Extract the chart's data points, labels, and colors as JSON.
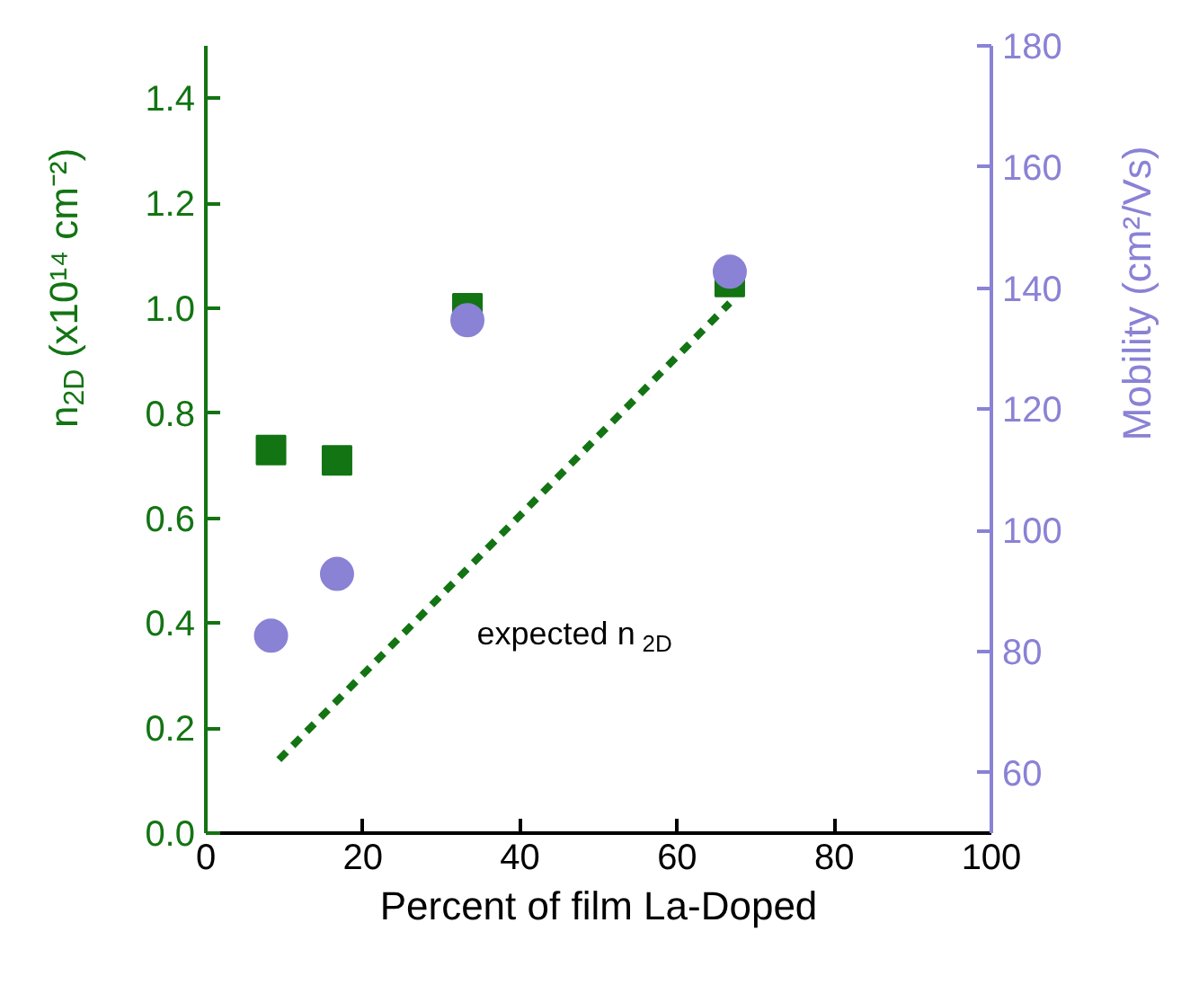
{
  "chart_data": {
    "type": "scatter",
    "xlabel": "Percent of film La-Doped",
    "ylabel": "n$_{2D}$ (x10¹⁴ cm⁻²)",
    "y2label": "Mobility (cm²/Vs)",
    "x": [
      8.3,
      16.7,
      33.3,
      66.7
    ],
    "series": [
      {
        "marker": "square",
        "color": "#137413",
        "values": [
          0.73,
          0.71,
          1.0,
          1.05
        ]
      },
      {
        "marker": "circle",
        "color": "#8a82d5",
        "axis": "y2",
        "values": [
          82.6,
          92.8,
          134.7,
          142.7
        ]
      },
      {
        "type": "line",
        "line_style": "dashed",
        "marker": "none",
        "color": "#137413",
        "x": [
          9.3,
          66.7
        ],
        "values": [
          0.14,
          1.01
        ]
      }
    ],
    "annotations": [
      "expected n$_{2D}$"
    ],
    "xlim": [
      0,
      100
    ],
    "xticks": [
      0,
      20,
      40,
      60,
      80,
      100
    ],
    "ylim": [
      0,
      1.5
    ],
    "yticks": [
      {
        "value": 0,
        "label": "0.0"
      },
      0.2,
      0.4,
      0.6,
      0.8,
      {
        "value": 1,
        "label": "1.0"
      },
      1.2,
      1.4
    ],
    "y2lim": [
      50,
      180
    ],
    "y2ticks": [
      60,
      80,
      100,
      120,
      140,
      160,
      180
    ]
  }
}
